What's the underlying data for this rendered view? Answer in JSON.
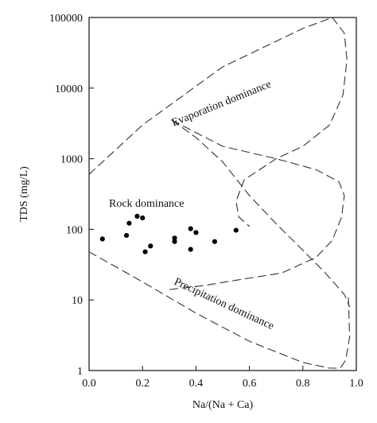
{
  "chart_data": {
    "type": "scatter",
    "title": "",
    "xlabel": "Na/(Na + Ca)",
    "ylabel": "TDS (mg/L)",
    "x_scale": "linear",
    "y_scale": "log",
    "xlim": [
      0,
      1
    ],
    "ylim": [
      1,
      100000
    ],
    "grid": false,
    "legend": "none",
    "x_ticks": [
      {
        "value": 0,
        "label": "0.0"
      },
      {
        "value": 0.2,
        "label": "0.2"
      },
      {
        "value": 0.4,
        "label": "0.4"
      },
      {
        "value": 0.6,
        "label": "0.6"
      },
      {
        "value": 0.8,
        "label": "0.8"
      },
      {
        "value": 1.0,
        "label": "1.0"
      }
    ],
    "y_ticks": [
      {
        "value": 1,
        "label": "1"
      },
      {
        "value": 10,
        "label": "10"
      },
      {
        "value": 100,
        "label": "100"
      },
      {
        "value": 1000,
        "label": "1000"
      },
      {
        "value": 10000,
        "label": "10000"
      },
      {
        "value": 100000,
        "label": "100000"
      }
    ],
    "points": [
      {
        "x": 0.05,
        "y": 73
      },
      {
        "x": 0.14,
        "y": 82
      },
      {
        "x": 0.15,
        "y": 122
      },
      {
        "x": 0.18,
        "y": 153
      },
      {
        "x": 0.2,
        "y": 145
      },
      {
        "x": 0.21,
        "y": 48
      },
      {
        "x": 0.23,
        "y": 58
      },
      {
        "x": 0.32,
        "y": 75
      },
      {
        "x": 0.32,
        "y": 67
      },
      {
        "x": 0.38,
        "y": 52
      },
      {
        "x": 0.38,
        "y": 102
      },
      {
        "x": 0.4,
        "y": 90
      },
      {
        "x": 0.47,
        "y": 67
      },
      {
        "x": 0.55,
        "y": 97
      }
    ],
    "boundaries": [
      {
        "name": "evaporation-upper-boundary",
        "points": [
          [
            0.0,
            600
          ],
          [
            0.2,
            3000
          ],
          [
            0.5,
            20000
          ],
          [
            0.8,
            70000
          ],
          [
            0.91,
            100000
          ]
        ]
      },
      {
        "name": "evaporation-right-boundary",
        "points": [
          [
            0.91,
            100000
          ],
          [
            0.955,
            60000
          ],
          [
            0.965,
            25000
          ],
          [
            0.95,
            8000
          ],
          [
            0.9,
            3000
          ],
          [
            0.8,
            1500
          ],
          [
            0.7,
            1000
          ],
          [
            0.58,
            500
          ],
          [
            0.55,
            250
          ],
          [
            0.56,
            150
          ],
          [
            0.6,
            110
          ]
        ]
      },
      {
        "name": "rock-upper-boundary",
        "points": [
          [
            0.31,
            3500
          ],
          [
            0.5,
            1500
          ],
          [
            0.7,
            1000
          ],
          [
            0.85,
            700
          ],
          [
            0.935,
            470
          ],
          [
            0.955,
            300
          ],
          [
            0.945,
            150
          ],
          [
            0.91,
            70
          ],
          [
            0.85,
            40
          ],
          [
            0.72,
            24
          ],
          [
            0.55,
            19
          ],
          [
            0.43,
            16
          ],
          [
            0.3,
            14
          ]
        ]
      },
      {
        "name": "precipitation-left-boundary",
        "points": [
          [
            0.0,
            48
          ],
          [
            0.2,
            18
          ],
          [
            0.4,
            6.5
          ],
          [
            0.6,
            2.6
          ],
          [
            0.8,
            1.3
          ],
          [
            0.9,
            1.08
          ],
          [
            0.94,
            1.08
          ],
          [
            0.96,
            1.4
          ],
          [
            0.975,
            3
          ],
          [
            0.97,
            12
          ]
        ]
      },
      {
        "name": "evaporation-lower-boundary",
        "points": [
          [
            0.31,
            3500
          ],
          [
            0.4,
            2000
          ],
          [
            0.5,
            900
          ],
          [
            0.6,
            300
          ],
          [
            0.7,
            120
          ],
          [
            0.78,
            60
          ],
          [
            0.88,
            25
          ],
          [
            0.955,
            12
          ],
          [
            0.975,
            8
          ]
        ]
      }
    ],
    "annotations": [
      {
        "name": "evaporation-dominance-label",
        "text": "Evaporation dominance",
        "x": 0.5,
        "y": 5500,
        "rotation": -22
      },
      {
        "name": "rock-dominance-label",
        "text": "Rock dominance",
        "x": 0.215,
        "y": 210,
        "rotation": 0
      },
      {
        "name": "precipitation-dominance-label",
        "text": "Precipitation dominance",
        "x": 0.5,
        "y": 8,
        "rotation": 25
      }
    ]
  }
}
